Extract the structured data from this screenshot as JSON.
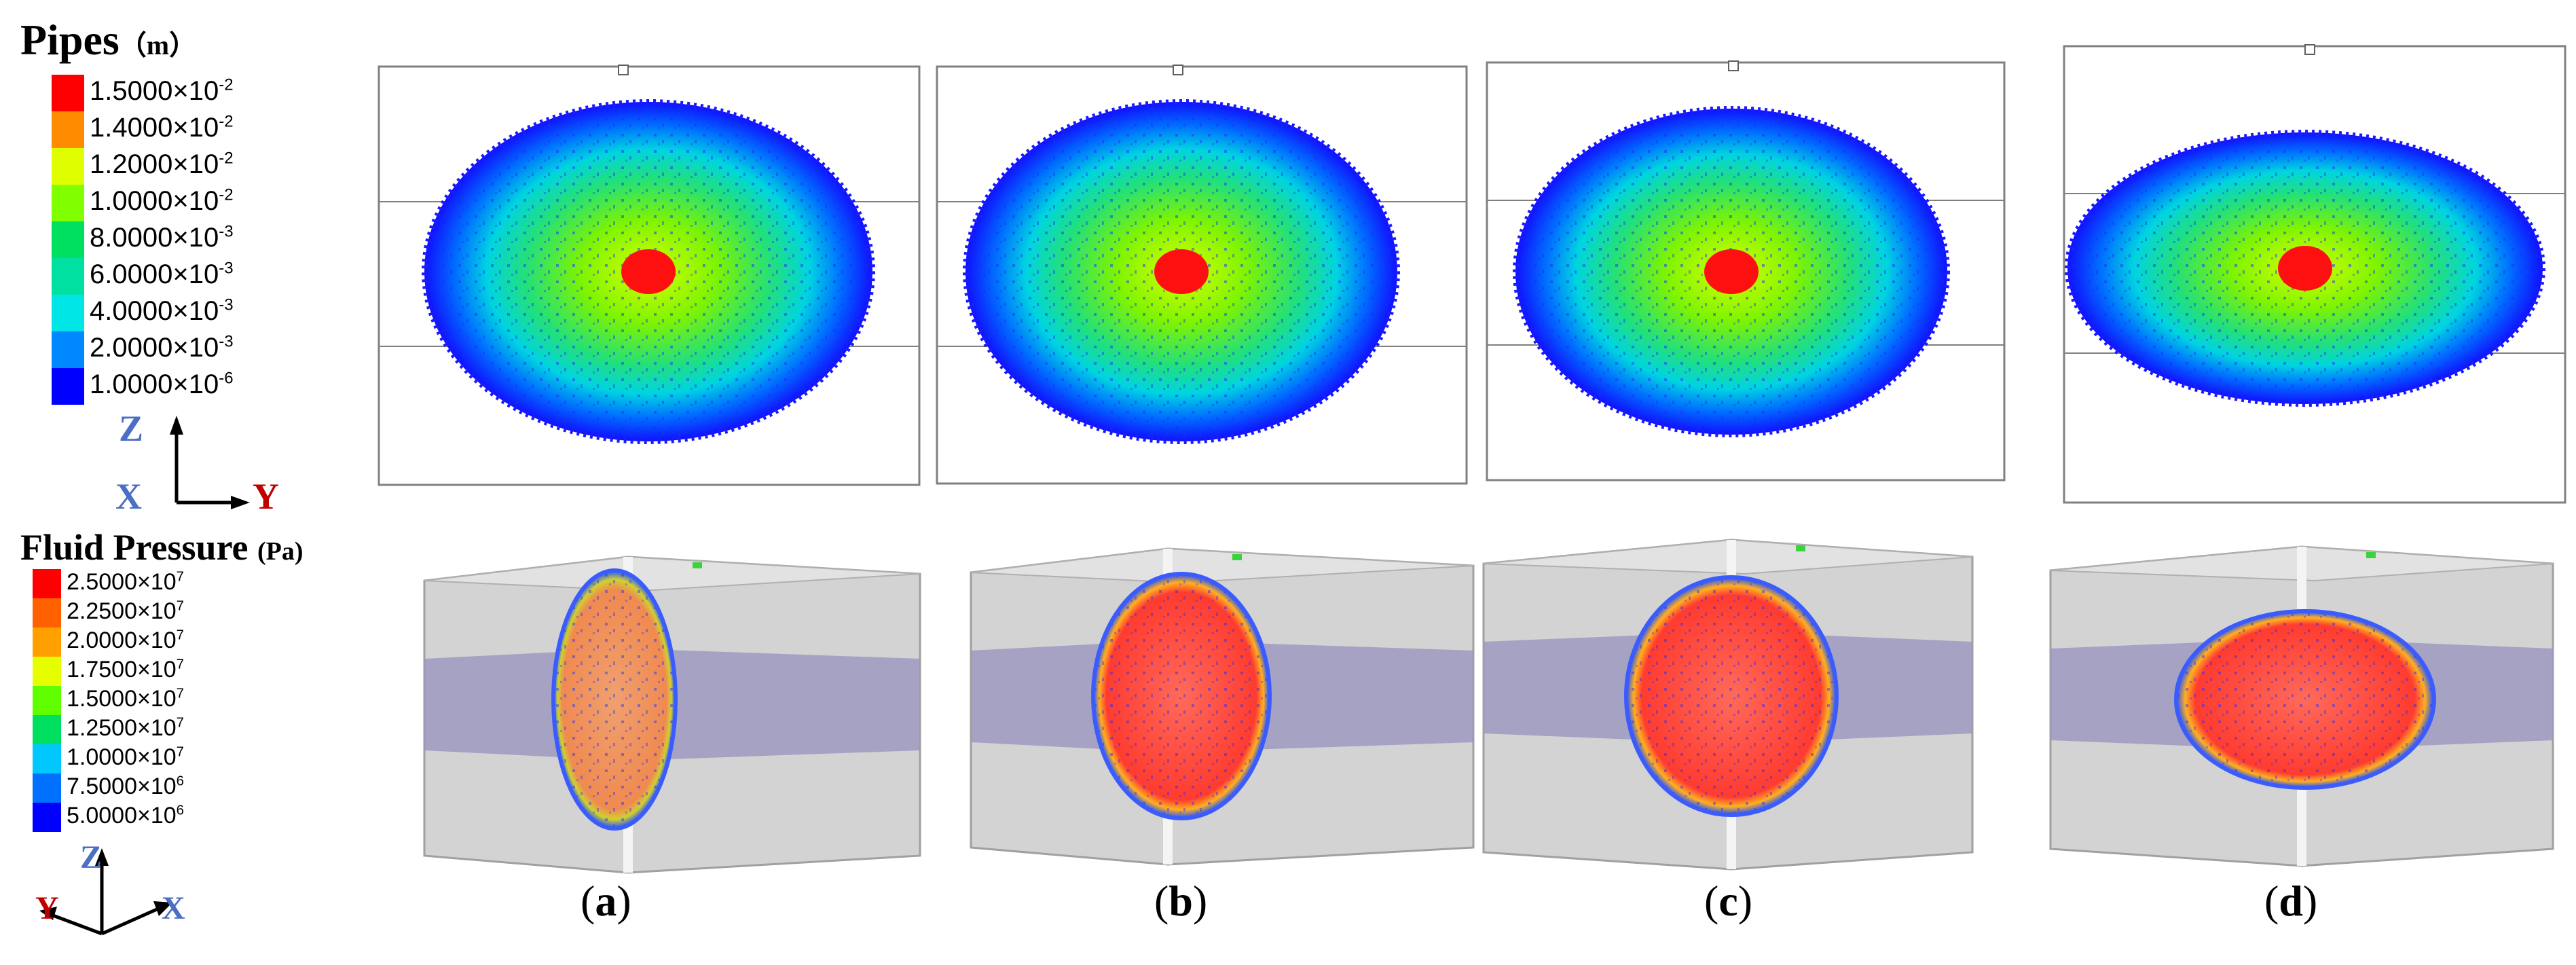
{
  "pipes_legend": {
    "title": "Pipes",
    "unit": "（m）",
    "entries": [
      {
        "mantissa": "1.5000",
        "exp": "-2",
        "color": "#ff0000"
      },
      {
        "mantissa": "1.4000",
        "exp": "-2",
        "color": "#ff8c00"
      },
      {
        "mantissa": "1.2000",
        "exp": "-2",
        "color": "#dfff00"
      },
      {
        "mantissa": "1.0000",
        "exp": "-2",
        "color": "#7fff00"
      },
      {
        "mantissa": "8.0000",
        "exp": "-3",
        "color": "#00e060"
      },
      {
        "mantissa": "6.0000",
        "exp": "-3",
        "color": "#00e0a0"
      },
      {
        "mantissa": "4.0000",
        "exp": "-3",
        "color": "#00e6e6"
      },
      {
        "mantissa": "2.0000",
        "exp": "-3",
        "color": "#0088ff"
      },
      {
        "mantissa": "1.0000",
        "exp": "-6",
        "color": "#0000ff"
      }
    ],
    "axes": {
      "up": "Z",
      "left": "X",
      "right": "Y"
    }
  },
  "pressure_legend": {
    "title": "Fluid Pressure",
    "unit": "(Pa)",
    "entries": [
      {
        "mantissa": "2.5000",
        "exp": "7",
        "color": "#ff0000"
      },
      {
        "mantissa": "2.2500",
        "exp": "7",
        "color": "#ff6000"
      },
      {
        "mantissa": "2.0000",
        "exp": "7",
        "color": "#ffa000"
      },
      {
        "mantissa": "1.7500",
        "exp": "7",
        "color": "#e6ff00"
      },
      {
        "mantissa": "1.5000",
        "exp": "7",
        "color": "#60ff00"
      },
      {
        "mantissa": "1.2500",
        "exp": "7",
        "color": "#00e060"
      },
      {
        "mantissa": "1.0000",
        "exp": "7",
        "color": "#00c8ff"
      },
      {
        "mantissa": "7.5000",
        "exp": "6",
        "color": "#0070ff"
      },
      {
        "mantissa": "5.0000",
        "exp": "6",
        "color": "#0000ff"
      }
    ],
    "axes": {
      "up": "Z",
      "left": "Y",
      "right": "X"
    }
  },
  "panels": [
    {
      "label": "a"
    },
    {
      "label": "b"
    },
    {
      "label": "c"
    },
    {
      "label": "d"
    }
  ]
}
